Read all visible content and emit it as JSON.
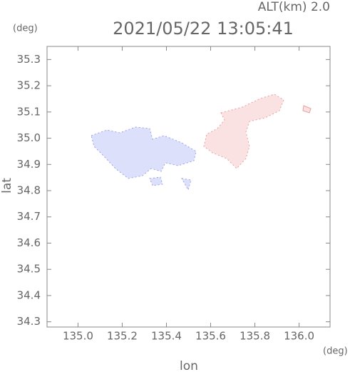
{
  "chart_data": {
    "type": "map",
    "title": "2021/05/22 13:05:41",
    "subtitle": "ALT(km) 2.0",
    "x_label": "lon",
    "y_label": "lat",
    "x_unit": "(deg)",
    "y_unit": "(deg)",
    "xlim": [
      134.86,
      136.14
    ],
    "ylim": [
      34.28,
      35.35
    ],
    "xticks": [
      {
        "value": 135.0,
        "label": "135.0"
      },
      {
        "value": 135.2,
        "label": "135.2"
      },
      {
        "value": 135.4,
        "label": "135.4"
      },
      {
        "value": 135.6,
        "label": "135.6"
      },
      {
        "value": 135.8,
        "label": "135.8"
      },
      {
        "value": 136.0,
        "label": "136.0"
      }
    ],
    "yticks": [
      {
        "value": 34.3,
        "label": "34.3"
      },
      {
        "value": 34.4,
        "label": "34.4"
      },
      {
        "value": 34.5,
        "label": "34.5"
      },
      {
        "value": 34.6,
        "label": "34.6"
      },
      {
        "value": 34.7,
        "label": "34.7"
      },
      {
        "value": 34.8,
        "label": "34.8"
      },
      {
        "value": 34.9,
        "label": "34.9"
      },
      {
        "value": 35.0,
        "label": "35.0"
      },
      {
        "value": 35.1,
        "label": "35.1"
      },
      {
        "value": 35.2,
        "label": "35.2"
      },
      {
        "value": 35.3,
        "label": "35.3"
      }
    ]
  }
}
